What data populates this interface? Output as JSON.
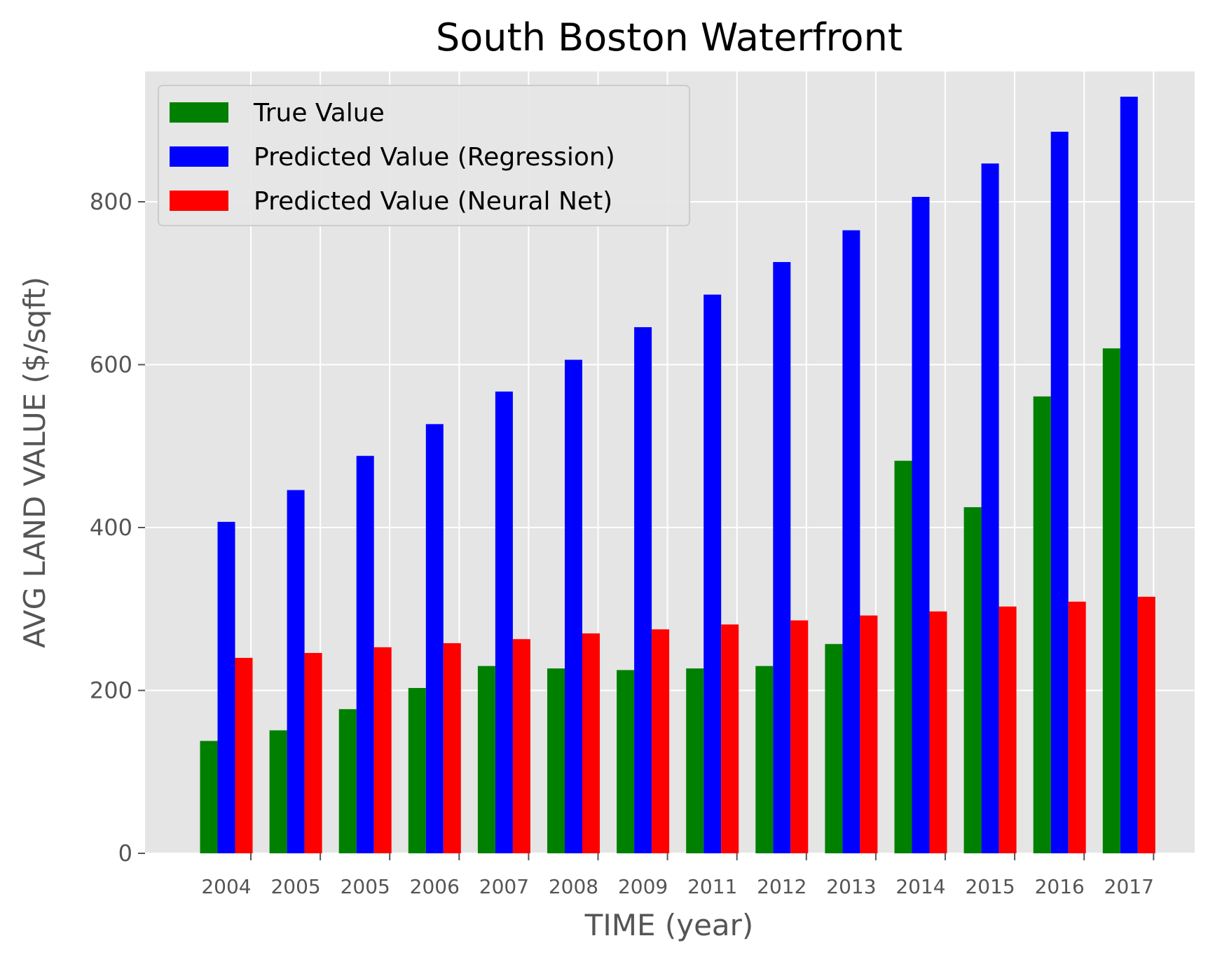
{
  "chart_data": {
    "type": "bar",
    "title": "South Boston Waterfront",
    "xlabel": "TIME (year)",
    "ylabel": "AVG LAND VALUE ($/sqft)",
    "categories": [
      "2004",
      "2005",
      "2005",
      "2006",
      "2007",
      "2008",
      "2009",
      "2011",
      "2012",
      "2013",
      "2014",
      "2015",
      "2016",
      "2017"
    ],
    "series": [
      {
        "name": "True Value",
        "color": "#008000",
        "values": [
          138,
          151,
          177,
          203,
          230,
          227,
          225,
          227,
          230,
          257,
          482,
          425,
          561,
          620
        ]
      },
      {
        "name": "Predicted Value (Regression)",
        "color": "#0000ff",
        "values": [
          407,
          446,
          488,
          527,
          567,
          606,
          646,
          686,
          726,
          765,
          806,
          847,
          886,
          929
        ]
      },
      {
        "name": "Predicted Value (Neural Net)",
        "color": "#ff0000",
        "values": [
          240,
          246,
          253,
          258,
          263,
          270,
          275,
          281,
          286,
          292,
          297,
          303,
          309,
          315
        ]
      }
    ],
    "ylim": [
      0,
      960
    ],
    "yticks": [
      0,
      200,
      400,
      600,
      800
    ],
    "grid": true,
    "legend_position": "top-left",
    "background_color": "#e5e5e5"
  }
}
